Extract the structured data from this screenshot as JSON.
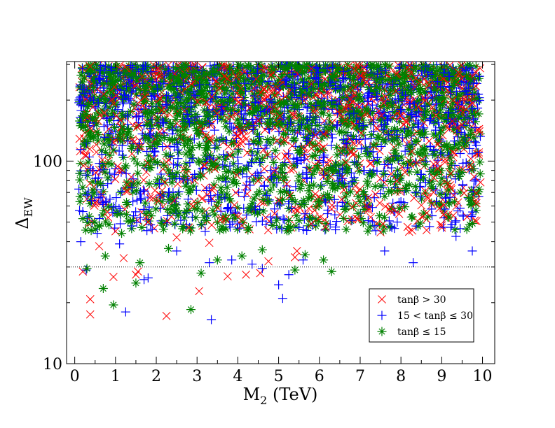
{
  "chart_data": {
    "type": "scatter",
    "title": "",
    "xlabel": "M",
    "xlabel_sub": "2",
    "xlabel_unit": " (TeV)",
    "ylabel": "Δ",
    "ylabel_sub": "EW",
    "xlim": [
      -0.2,
      10.3
    ],
    "ylim": [
      10,
      310
    ],
    "yscale": "log",
    "x_ticks": [
      0,
      1,
      2,
      3,
      4,
      5,
      6,
      7,
      8,
      9,
      10
    ],
    "x_tick_labels": [
      "0",
      "1",
      "2",
      "3",
      "4",
      "5",
      "6",
      "7",
      "8",
      "9",
      "10"
    ],
    "y_ticks": [
      10,
      100
    ],
    "y_tick_labels": [
      "10",
      "100"
    ],
    "reference_line": {
      "y": 30,
      "style": "dotted"
    },
    "legend_position": "lower-right",
    "dense_band": {
      "y_min": 100,
      "y_max": 300,
      "note": "points saturate between ~100 and ~300 across all M2"
    },
    "series": [
      {
        "name": "tanβ > 30",
        "marker": "x",
        "color": "#ff0000",
        "points": [
          [
            0.38,
            17.5
          ],
          [
            0.38,
            20.8
          ],
          [
            0.95,
            26.8
          ],
          [
            1.2,
            33.2
          ],
          [
            1.5,
            27.5
          ],
          [
            1.55,
            28.5
          ],
          [
            2.25,
            17.2
          ],
          [
            3.05,
            22.8
          ],
          [
            3.3,
            39.5
          ],
          [
            3.75,
            27
          ],
          [
            4.2,
            27.5
          ],
          [
            4.55,
            28
          ],
          [
            4.75,
            32
          ],
          [
            5.4,
            33.5
          ],
          [
            5.45,
            36
          ],
          [
            7.5,
            44.5
          ],
          [
            7.75,
            56.5
          ],
          [
            8.2,
            44.8
          ],
          [
            8.5,
            60.5
          ],
          [
            8.65,
            66.5
          ],
          [
            9.05,
            54.5
          ],
          [
            9.4,
            62.5
          ],
          [
            9.55,
            69.5
          ],
          [
            9.85,
            62
          ],
          [
            9.95,
            78.5
          ],
          [
            0.2,
            28.5
          ],
          [
            0.6,
            38
          ],
          [
            1.0,
            45
          ],
          [
            1.8,
            50
          ],
          [
            2.5,
            42
          ],
          [
            2.8,
            47
          ],
          [
            3.6,
            52
          ],
          [
            4.1,
            48
          ],
          [
            4.9,
            55
          ],
          [
            5.8,
            49
          ],
          [
            6.3,
            58
          ],
          [
            6.9,
            62
          ],
          [
            7.2,
            66
          ],
          [
            0.5,
            62
          ],
          [
            1.3,
            71
          ],
          [
            2.1,
            68
          ],
          [
            3.4,
            74
          ],
          [
            4.5,
            80
          ],
          [
            5.2,
            77
          ],
          [
            6.1,
            84
          ],
          [
            8.1,
            88
          ],
          [
            8.9,
            92
          ],
          [
            9.7,
            95
          ],
          [
            9.2,
            76
          ],
          [
            8.8,
            70
          ],
          [
            0.8,
            56
          ],
          [
            2.9,
            60
          ],
          [
            5.0,
            64
          ],
          [
            6.6,
            72
          ],
          [
            7.9,
            80
          ]
        ]
      },
      {
        "name": "15 < tanβ ≤ 30",
        "marker": "+",
        "color": "#0000ff",
        "points": [
          [
            0.28,
            29
          ],
          [
            1.25,
            18
          ],
          [
            1.7,
            26
          ],
          [
            1.8,
            26.5
          ],
          [
            2.5,
            36
          ],
          [
            3.35,
            16.5
          ],
          [
            3.3,
            31.5
          ],
          [
            3.85,
            32.5
          ],
          [
            4.35,
            31
          ],
          [
            4.6,
            29.5
          ],
          [
            5.0,
            24.5
          ],
          [
            5.1,
            21
          ],
          [
            5.25,
            27.5
          ],
          [
            5.6,
            32.5
          ],
          [
            7.6,
            36
          ],
          [
            8.3,
            31.5
          ],
          [
            8.7,
            47.5
          ],
          [
            9.25,
            48.5
          ],
          [
            9.35,
            42.5
          ],
          [
            9.75,
            36
          ],
          [
            8.75,
            58
          ],
          [
            9.1,
            65.5
          ],
          [
            9.45,
            58.5
          ],
          [
            0.15,
            40
          ],
          [
            0.55,
            44
          ],
          [
            1.1,
            39
          ],
          [
            1.9,
            46
          ],
          [
            2.6,
            51
          ],
          [
            3.2,
            45
          ],
          [
            4.0,
            49
          ],
          [
            4.8,
            53
          ],
          [
            5.5,
            47
          ],
          [
            6.2,
            55
          ],
          [
            6.8,
            51
          ],
          [
            7.3,
            59
          ],
          [
            8.0,
            63
          ],
          [
            0.3,
            68
          ],
          [
            1.4,
            74
          ],
          [
            2.3,
            70
          ],
          [
            3.7,
            79
          ],
          [
            4.3,
            76
          ],
          [
            5.7,
            82
          ],
          [
            6.5,
            87
          ],
          [
            7.1,
            90
          ],
          [
            8.5,
            86
          ],
          [
            9.6,
            98
          ],
          [
            9.9,
            110
          ]
        ]
      },
      {
        "name": "tanβ ≤ 15",
        "marker": "*",
        "color": "#008000",
        "points": [
          [
            0.3,
            29.5
          ],
          [
            0.7,
            23.5
          ],
          [
            0.75,
            34
          ],
          [
            0.95,
            19.5
          ],
          [
            1.5,
            25
          ],
          [
            1.6,
            31.5
          ],
          [
            2.3,
            37
          ],
          [
            2.85,
            18.5
          ],
          [
            3.1,
            28
          ],
          [
            3.5,
            32.5
          ],
          [
            4.1,
            34
          ],
          [
            4.6,
            36.5
          ],
          [
            5.4,
            29
          ],
          [
            5.65,
            34.5
          ],
          [
            6.1,
            32.5
          ],
          [
            6.3,
            28.5
          ],
          [
            0.2,
            52
          ],
          [
            0.6,
            48
          ],
          [
            1.15,
            44
          ],
          [
            1.75,
            55
          ],
          [
            2.45,
            49
          ],
          [
            3.0,
            58
          ],
          [
            3.65,
            46
          ],
          [
            4.25,
            57
          ],
          [
            4.95,
            51
          ],
          [
            5.55,
            61
          ],
          [
            6.25,
            66
          ],
          [
            7.0,
            63
          ],
          [
            7.7,
            71
          ],
          [
            8.35,
            75
          ],
          [
            9.0,
            82
          ],
          [
            9.5,
            88
          ],
          [
            0.45,
            72
          ],
          [
            1.55,
            78
          ],
          [
            2.7,
            84
          ],
          [
            3.9,
            81
          ],
          [
            5.1,
            88
          ],
          [
            6.7,
            92
          ],
          [
            8.6,
            96
          ]
        ]
      }
    ]
  }
}
